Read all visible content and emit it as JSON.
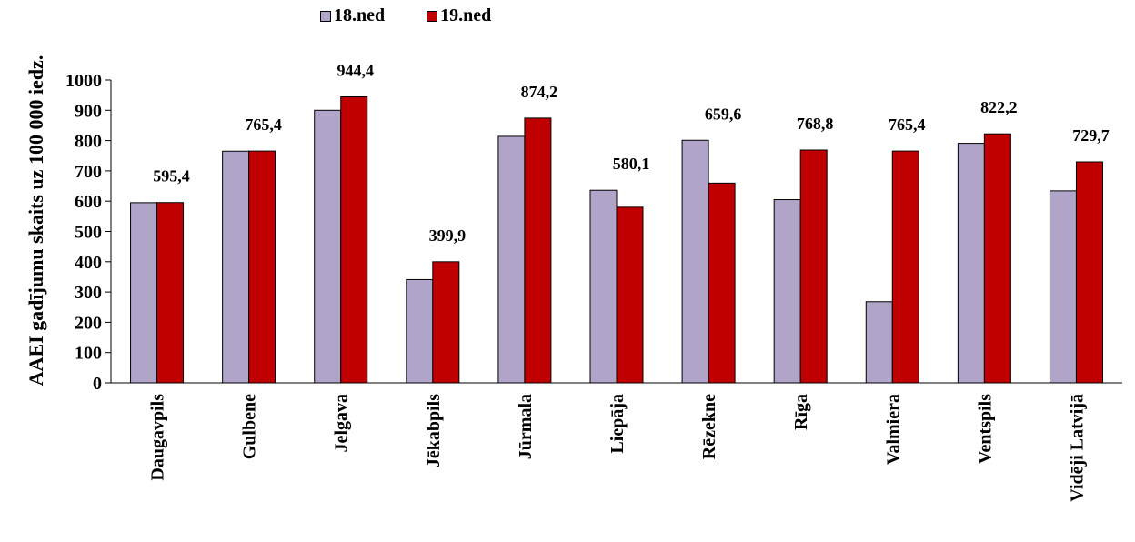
{
  "chart_data": {
    "type": "bar",
    "ylabel": "AAEI gadījumu skaits uz 100 000 iedz.",
    "ylim": [
      0,
      1000
    ],
    "yticks": [
      0,
      100,
      200,
      300,
      400,
      500,
      600,
      700,
      800,
      900,
      1000
    ],
    "grid": false,
    "legend_position": "top-center",
    "categories": [
      "Daugavpils",
      "Gulbene",
      "Jelgava",
      "Jēkabpils",
      "Jūrmala",
      "Liepāja",
      "Rēzekne",
      "Rīga",
      "Valmiera",
      "Ventspils",
      "Vidēji Latvijā"
    ],
    "series": [
      {
        "name": "18.ned",
        "color": "#b0a4c8",
        "values": [
          595,
          765,
          900,
          341,
          814,
          636,
          801,
          605,
          268,
          791,
          634
        ]
      },
      {
        "name": "19.ned",
        "color": "#c00000",
        "values": [
          595.4,
          765.4,
          944.4,
          399.9,
          874.2,
          580.1,
          659.6,
          768.8,
          765.4,
          822.2,
          729.7
        ],
        "data_labels": [
          "595,4",
          "765,4",
          "944,4",
          "399,9",
          "874,2",
          "580,1",
          "659,6",
          "768,8",
          "765,4",
          "822,2",
          "729,7"
        ]
      }
    ]
  }
}
